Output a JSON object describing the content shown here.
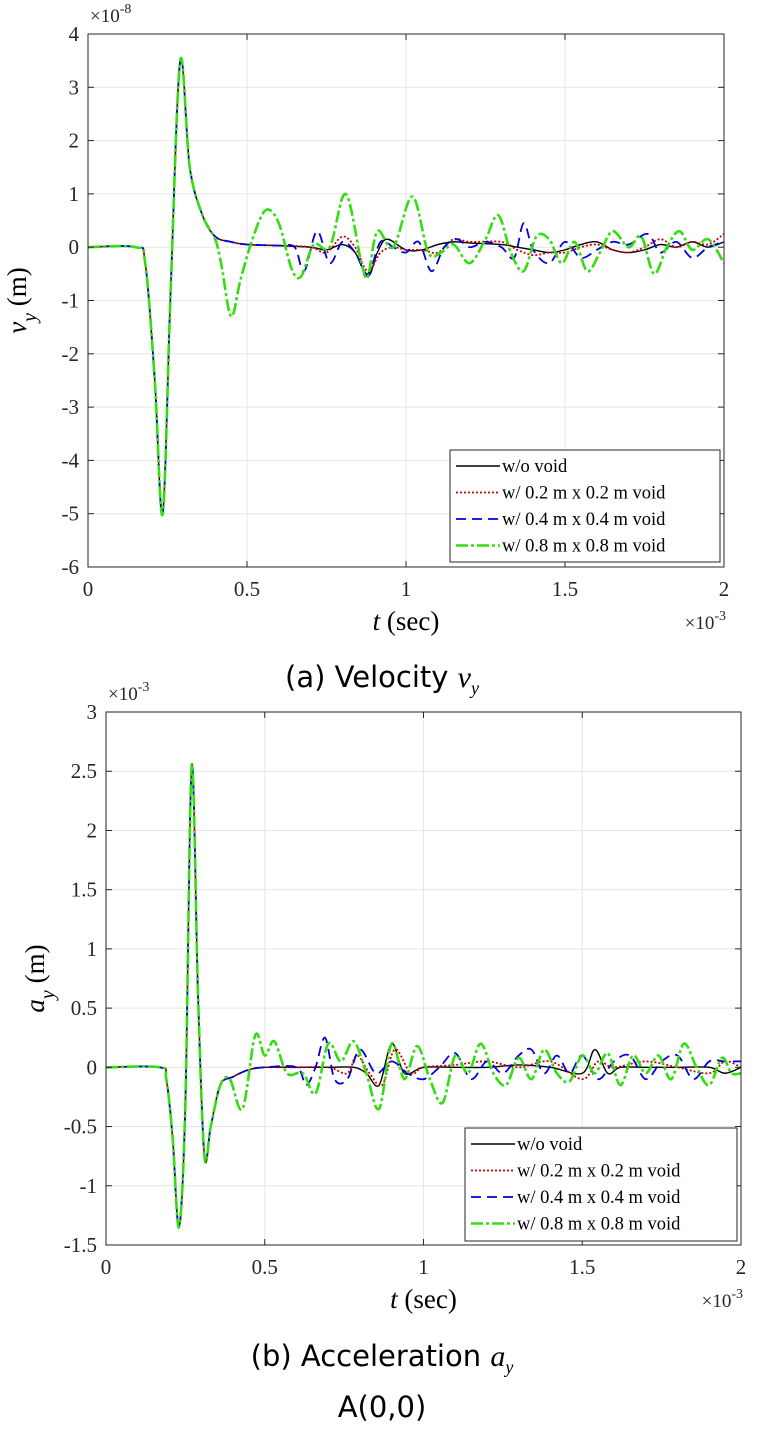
{
  "captions": [
    {
      "text": "(a) Velocity ",
      "var": "v",
      "sub": "y"
    },
    {
      "text": "(b) Acceleration ",
      "var": "a",
      "sub": "y"
    }
  ],
  "location_label": "A(0,0)",
  "legend": [
    "w/o void",
    "w/ 0.2 m x 0.2 m void",
    "w/ 0.4 m x 0.4 m void",
    "w/ 0.8 m x 0.8 m void"
  ],
  "styles": [
    {
      "color": "#000000",
      "dash": "",
      "width": 1.4
    },
    {
      "color": "#cc0000",
      "dash": "2,2",
      "width": 1.8
    },
    {
      "color": "#0000dd",
      "dash": "10,6",
      "width": 1.8
    },
    {
      "color": "#33dd11",
      "dash": "12,3,3,3",
      "width": 2.6
    }
  ],
  "chart_data": [
    {
      "type": "line",
      "xlabel_var": "t",
      "xlabel_unit": "(sec)",
      "ylabel_var": "v",
      "ylabel_sub": "y",
      "ylabel_unit": "(m)",
      "y_multiplier": "10",
      "y_multiplier_exp": "-8",
      "x_multiplier": "10",
      "x_multiplier_exp": "-3",
      "xlim": [
        0,
        2
      ],
      "ylim": [
        -6,
        4
      ],
      "xticks": [
        0,
        0.5,
        1,
        1.5,
        2
      ],
      "xtick_labels": [
        "0",
        "0.5",
        "1",
        "1.5",
        "2"
      ],
      "yticks": [
        -6,
        -5,
        -4,
        -3,
        -2,
        -1,
        0,
        1,
        2,
        3,
        4
      ],
      "ytick_labels": [
        "-6",
        "-5",
        "-4",
        "-3",
        "-2",
        "-1",
        "0",
        "1",
        "2",
        "3",
        "4"
      ],
      "grid": true,
      "legend_position": "bottom-right",
      "series": [
        {
          "name": "w/o void",
          "x": [
            0,
            0.15,
            0.18,
            0.21,
            0.235,
            0.26,
            0.29,
            0.32,
            0.36,
            0.4,
            0.45,
            0.5,
            0.6,
            0.7,
            0.75,
            0.8,
            0.84,
            0.88,
            0.91,
            0.94,
            1.0,
            1.05,
            1.1,
            1.15,
            1.2,
            1.3,
            1.35,
            1.4,
            1.45,
            1.5,
            1.55,
            1.6,
            1.65,
            1.7,
            1.75,
            1.8,
            1.85,
            1.9,
            1.95,
            2.0
          ],
          "y": [
            0,
            0,
            -0.3,
            -2.5,
            -5,
            -0.8,
            3.5,
            1.5,
            0.6,
            0.2,
            0.1,
            0.05,
            0.03,
            0.0,
            -0.05,
            0.05,
            -0.1,
            -0.55,
            -0.1,
            0.15,
            -0.05,
            -0.05,
            0.05,
            0.1,
            0.08,
            0.05,
            0.0,
            -0.05,
            -0.1,
            -0.05,
            0.05,
            0.1,
            -0.05,
            -0.1,
            -0.05,
            0.05,
            0.0,
            0.1,
            0.0,
            0.1
          ]
        },
        {
          "name": "w/ 0.2 m x 0.2 m void",
          "x": [
            0,
            0.15,
            0.18,
            0.21,
            0.235,
            0.26,
            0.29,
            0.32,
            0.36,
            0.4,
            0.45,
            0.5,
            0.6,
            0.7,
            0.75,
            0.8,
            0.84,
            0.88,
            0.92,
            0.96,
            1.0,
            1.05,
            1.1,
            1.15,
            1.2,
            1.3,
            1.35,
            1.4,
            1.45,
            1.5,
            1.55,
            1.6,
            1.65,
            1.7,
            1.75,
            1.8,
            1.85,
            1.9,
            1.95,
            2.0
          ],
          "y": [
            0,
            0,
            -0.3,
            -2.5,
            -5,
            -0.8,
            3.5,
            1.5,
            0.6,
            0.2,
            0.1,
            0.05,
            0.03,
            0.0,
            -0.1,
            0.2,
            0.0,
            -0.45,
            -0.1,
            0.0,
            -0.05,
            -0.05,
            -0.1,
            0.15,
            0.1,
            0.1,
            -0.05,
            -0.15,
            -0.1,
            -0.1,
            0.0,
            0.05,
            -0.05,
            -0.1,
            0.0,
            0.15,
            0.0,
            0.1,
            0.05,
            0.25
          ]
        },
        {
          "name": "w/ 0.4 m x 0.4 m void",
          "x": [
            0,
            0.15,
            0.18,
            0.21,
            0.235,
            0.26,
            0.29,
            0.32,
            0.36,
            0.4,
            0.45,
            0.5,
            0.6,
            0.65,
            0.68,
            0.72,
            0.76,
            0.8,
            0.84,
            0.88,
            0.92,
            0.96,
            1.0,
            1.04,
            1.08,
            1.12,
            1.16,
            1.2,
            1.25,
            1.3,
            1.34,
            1.37,
            1.4,
            1.45,
            1.5,
            1.55,
            1.6,
            1.65,
            1.7,
            1.76,
            1.8,
            1.85,
            1.9,
            1.95,
            2.0
          ],
          "y": [
            0,
            0,
            -0.3,
            -2.5,
            -5,
            -0.8,
            3.5,
            1.5,
            0.6,
            0.2,
            0.1,
            0.05,
            0.03,
            0.0,
            -0.45,
            0.3,
            -0.3,
            0.1,
            -0.1,
            -0.5,
            0.1,
            0.0,
            -0.1,
            0.1,
            -0.45,
            0.0,
            0.15,
            0.0,
            0.1,
            0.0,
            -0.2,
            0.45,
            -0.05,
            -0.3,
            0.1,
            -0.2,
            -0.05,
            0.1,
            0.05,
            0.25,
            -0.1,
            0.1,
            -0.2,
            0.0,
            0.1
          ]
        },
        {
          "name": "w/ 0.8 m x 0.8 m void",
          "x": [
            0,
            0.15,
            0.18,
            0.21,
            0.235,
            0.26,
            0.29,
            0.32,
            0.36,
            0.4,
            0.42,
            0.45,
            0.48,
            0.52,
            0.56,
            0.6,
            0.64,
            0.67,
            0.71,
            0.76,
            0.81,
            0.86,
            0.88,
            0.91,
            0.96,
            1.02,
            1.07,
            1.11,
            1.15,
            1.2,
            1.25,
            1.29,
            1.33,
            1.37,
            1.41,
            1.45,
            1.49,
            1.53,
            1.57,
            1.61,
            1.65,
            1.7,
            1.74,
            1.78,
            1.82,
            1.86,
            1.9,
            1.95,
            2.0
          ],
          "y": [
            0,
            0,
            -0.3,
            -2.5,
            -5,
            -0.8,
            3.5,
            1.5,
            0.6,
            0.15,
            -0.35,
            -1.3,
            -0.6,
            0.2,
            0.7,
            0.45,
            -0.4,
            -0.55,
            0.05,
            0.0,
            1.0,
            -0.3,
            -0.55,
            0.3,
            0.0,
            0.95,
            -0.1,
            -0.1,
            0.05,
            -0.3,
            0.15,
            0.6,
            -0.1,
            -0.45,
            0.2,
            0.15,
            -0.3,
            0.1,
            -0.45,
            -0.1,
            0.3,
            0.0,
            0.2,
            -0.5,
            0.0,
            0.3,
            -0.05,
            0.15,
            -0.3
          ]
        }
      ]
    },
    {
      "type": "line",
      "xlabel_var": "t",
      "xlabel_unit": "(sec)",
      "ylabel_var": "a",
      "ylabel_sub": "y",
      "ylabel_unit": "(m)",
      "y_multiplier": "10",
      "y_multiplier_exp": "-3",
      "x_multiplier": "10",
      "x_multiplier_exp": "-3",
      "xlim": [
        0,
        2
      ],
      "ylim": [
        -1.5,
        3
      ],
      "xticks": [
        0,
        0.5,
        1,
        1.5,
        2
      ],
      "xtick_labels": [
        "0",
        "0.5",
        "1",
        "1.5",
        "2"
      ],
      "yticks": [
        -1.5,
        -1,
        -0.5,
        0,
        0.5,
        1,
        1.5,
        2,
        2.5,
        3
      ],
      "ytick_labels": [
        "-1.5",
        "-1",
        "-0.5",
        "0",
        "0.5",
        "1",
        "1.5",
        "2",
        "2.5",
        "3"
      ],
      "grid": true,
      "legend_position": "bottom-right",
      "series": [
        {
          "name": "w/o void",
          "x": [
            0,
            0.17,
            0.19,
            0.21,
            0.23,
            0.25,
            0.27,
            0.29,
            0.31,
            0.33,
            0.36,
            0.4,
            0.45,
            0.5,
            0.6,
            0.7,
            0.78,
            0.82,
            0.86,
            0.9,
            0.94,
            1.0,
            1.1,
            1.2,
            1.3,
            1.4,
            1.5,
            1.54,
            1.58,
            1.62,
            1.7,
            1.8,
            1.9,
            1.95,
            2.0
          ],
          "y": [
            0,
            0,
            -0.1,
            -0.6,
            -1.35,
            -0.3,
            2.55,
            0.6,
            -0.75,
            -0.5,
            -0.15,
            -0.08,
            -0.02,
            0.0,
            0.0,
            0.0,
            0.0,
            -0.05,
            -0.15,
            0.2,
            -0.05,
            0.0,
            0.0,
            0.0,
            0.02,
            0.0,
            -0.05,
            0.15,
            -0.05,
            0.0,
            0.0,
            0.0,
            0.0,
            -0.05,
            0.0
          ]
        },
        {
          "name": "w/ 0.2 m x 0.2 m void",
          "x": [
            0,
            0.17,
            0.19,
            0.21,
            0.23,
            0.25,
            0.27,
            0.29,
            0.31,
            0.33,
            0.36,
            0.4,
            0.45,
            0.5,
            0.6,
            0.7,
            0.76,
            0.79,
            0.83,
            0.87,
            0.91,
            0.96,
            1.0,
            1.1,
            1.2,
            1.3,
            1.4,
            1.5,
            1.55,
            1.6,
            1.7,
            1.8,
            1.9,
            1.95,
            2.0
          ],
          "y": [
            0,
            0,
            -0.1,
            -0.6,
            -1.35,
            -0.3,
            2.55,
            0.6,
            -0.75,
            -0.5,
            -0.15,
            -0.08,
            -0.02,
            0.0,
            0.0,
            0.0,
            -0.05,
            0.1,
            -0.05,
            -0.15,
            0.15,
            -0.05,
            0.0,
            0.02,
            0.05,
            0.0,
            0.05,
            -0.1,
            0.05,
            0.0,
            0.05,
            0.0,
            -0.05,
            0.05,
            0.0
          ]
        },
        {
          "name": "w/ 0.4 m x 0.4 m void",
          "x": [
            0,
            0.17,
            0.19,
            0.21,
            0.23,
            0.25,
            0.27,
            0.29,
            0.31,
            0.33,
            0.36,
            0.4,
            0.45,
            0.5,
            0.6,
            0.63,
            0.66,
            0.69,
            0.72,
            0.76,
            0.8,
            0.85,
            0.9,
            0.95,
            1.0,
            1.05,
            1.1,
            1.15,
            1.2,
            1.25,
            1.3,
            1.34,
            1.38,
            1.42,
            1.46,
            1.5,
            1.55,
            1.6,
            1.65,
            1.7,
            1.75,
            1.8,
            1.85,
            1.9,
            1.95,
            2.0
          ],
          "y": [
            0,
            0,
            -0.1,
            -0.6,
            -1.35,
            -0.3,
            2.55,
            0.6,
            -0.75,
            -0.5,
            -0.15,
            -0.08,
            -0.02,
            0.0,
            0.0,
            -0.15,
            0.0,
            0.25,
            -0.1,
            -0.1,
            0.15,
            -0.05,
            0.05,
            -0.05,
            -0.1,
            0.0,
            0.12,
            -0.1,
            0.05,
            -0.05,
            0.1,
            0.15,
            -0.05,
            0.1,
            -0.05,
            0.1,
            -0.1,
            0.05,
            0.1,
            -0.1,
            0.05,
            0.1,
            -0.1,
            0.05,
            0.05,
            0.05
          ]
        },
        {
          "name": "w/ 0.8 m x 0.8 m void",
          "x": [
            0,
            0.17,
            0.19,
            0.21,
            0.23,
            0.25,
            0.27,
            0.29,
            0.31,
            0.33,
            0.36,
            0.39,
            0.43,
            0.47,
            0.5,
            0.53,
            0.57,
            0.62,
            0.66,
            0.7,
            0.74,
            0.78,
            0.82,
            0.86,
            0.9,
            0.94,
            0.98,
            1.02,
            1.06,
            1.1,
            1.14,
            1.18,
            1.22,
            1.26,
            1.3,
            1.34,
            1.38,
            1.42,
            1.46,
            1.5,
            1.54,
            1.58,
            1.62,
            1.66,
            1.7,
            1.74,
            1.78,
            1.82,
            1.86,
            1.9,
            1.94,
            1.97,
            2.0
          ],
          "y": [
            0,
            0,
            -0.1,
            -0.6,
            -1.35,
            -0.3,
            2.55,
            0.6,
            -0.75,
            -0.5,
            -0.15,
            -0.1,
            -0.35,
            0.27,
            0.1,
            0.22,
            -0.05,
            -0.05,
            -0.22,
            0.2,
            0.05,
            0.22,
            -0.05,
            -0.35,
            0.2,
            -0.1,
            0.18,
            -0.1,
            -0.3,
            0.1,
            -0.05,
            0.2,
            -0.05,
            -0.15,
            0.08,
            -0.1,
            0.15,
            -0.05,
            -0.12,
            0.1,
            -0.05,
            0.12,
            -0.15,
            0.1,
            -0.05,
            0.1,
            -0.1,
            0.2,
            0.0,
            -0.15,
            0.08,
            -0.05,
            -0.05
          ]
        }
      ]
    }
  ]
}
